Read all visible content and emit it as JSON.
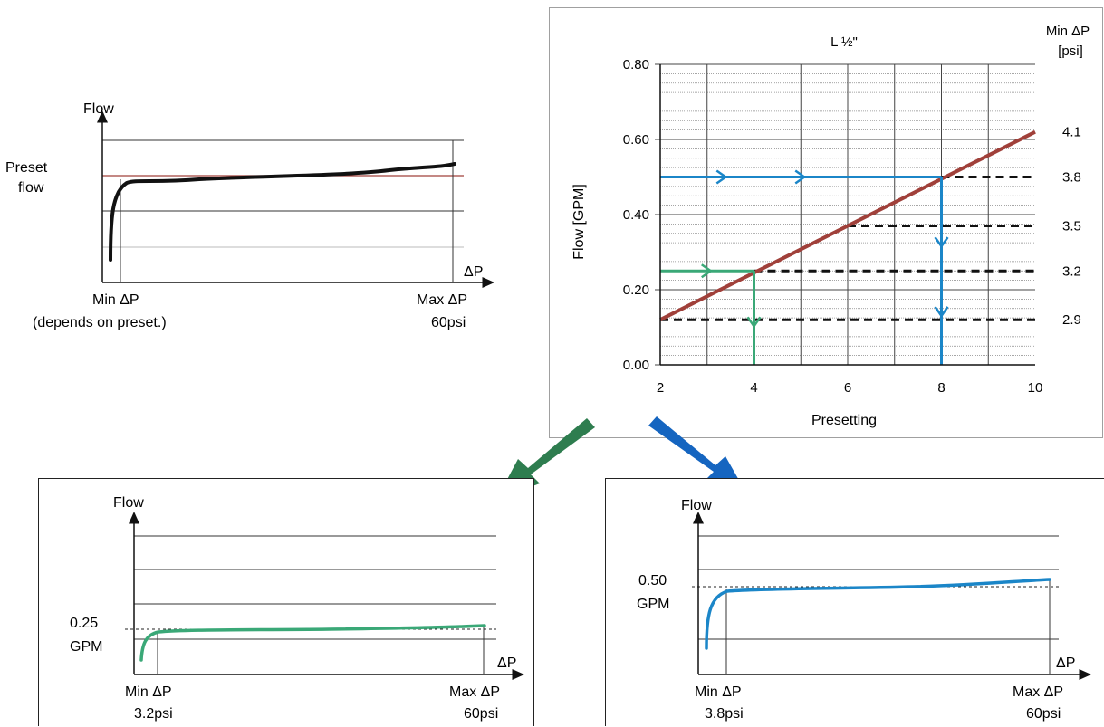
{
  "generic_chart": {
    "ylabel": "Flow",
    "xlabel": "ΔP",
    "preset_label_line1": "Preset",
    "preset_label_line2": "flow",
    "min_label": "Min ΔP",
    "min_note": "(depends on preset.)",
    "max_label": "Max ΔP",
    "max_value": "60psi"
  },
  "green_chart": {
    "ylabel": "Flow",
    "xlabel": "ΔP",
    "flow_value": "0.25",
    "flow_unit": "GPM",
    "min_label": "Min ΔP",
    "min_value": "3.2psi",
    "max_label": "Max ΔP",
    "max_value": "60psi"
  },
  "blue_chart": {
    "ylabel": "Flow",
    "xlabel": "ΔP",
    "flow_value": "0.50",
    "flow_unit": "GPM",
    "min_label": "Min ΔP",
    "min_value": "3.8psi",
    "max_label": "Max ΔP",
    "max_value": "60psi"
  },
  "colors": {
    "preset_line": "#a0403a",
    "green": "#3aa877",
    "green_arrow": "#2e7d4f",
    "blue": "#1b86c8",
    "blue_arrow": "#1565c0"
  },
  "chart_data": {
    "type": "line",
    "title": "L ½\"",
    "xlabel": "Presetting",
    "ylabel": "Flow [GPM]",
    "right_axis_label": "Min ΔP [psi]",
    "right_axis_label_line1": "Min ΔP",
    "right_axis_label_line2": "[psi]",
    "xlim": [
      2,
      10
    ],
    "ylim": [
      0,
      0.8
    ],
    "x_ticks": [
      2,
      4,
      6,
      8,
      10
    ],
    "x_tick_labels": [
      "2",
      "4",
      "6",
      "8",
      "10"
    ],
    "y_ticks": [
      0,
      0.2,
      0.4,
      0.6,
      0.8
    ],
    "y_tick_labels": [
      "0.00",
      "0.20",
      "0.40",
      "0.60",
      "0.80"
    ],
    "grid": true,
    "series": [
      {
        "x": [
          2,
          10
        ],
        "y": [
          0.12,
          0.62
        ],
        "color": "#a0403a"
      }
    ],
    "min_dp_levels": [
      {
        "label": "2.9",
        "y": 0.12,
        "x_from": 2
      },
      {
        "label": "3.2",
        "y": 0.25,
        "x_from": 4
      },
      {
        "label": "3.5",
        "y": 0.37,
        "x_from": 6
      },
      {
        "label": "3.8",
        "y": 0.5,
        "x_from": 8
      },
      {
        "label": "4.1",
        "y": 0.62,
        "x_from": 10
      }
    ],
    "lookup_paths": [
      {
        "flow": 0.25,
        "presetting": 4,
        "min_dp": "3.2",
        "color": "#3aa877"
      },
      {
        "flow": 0.5,
        "presetting": 8,
        "min_dp": "3.8",
        "color": "#1b86c8"
      }
    ]
  }
}
